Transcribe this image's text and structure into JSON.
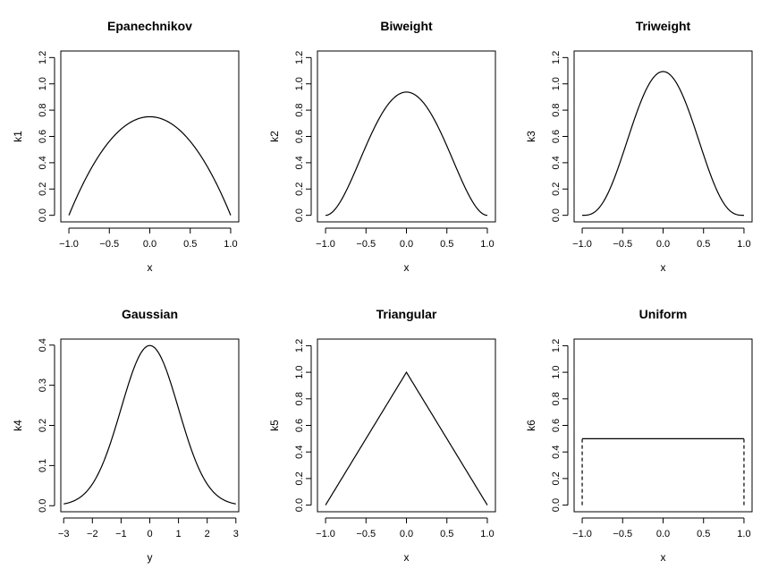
{
  "chart_data": [
    {
      "type": "line",
      "kernel": "epanechnikov",
      "title": "Epanechnikov",
      "xlabel": "x",
      "ylabel": "k1",
      "xlim": [
        -1.1,
        1.1
      ],
      "ylim": [
        -0.05,
        1.25
      ],
      "xticks": [
        -1.0,
        -0.5,
        0.0,
        0.5,
        1.0
      ],
      "xtick_labels": [
        "−1.0",
        "−0.5",
        "0.0",
        "0.5",
        "1.0"
      ],
      "yticks": [
        0.0,
        0.2,
        0.4,
        0.6,
        0.8,
        1.0,
        1.2
      ],
      "ytick_labels": [
        "0.0",
        "0.2",
        "0.4",
        "0.6",
        "0.8",
        "1.0",
        "1.2"
      ],
      "x_range": [
        -1.0,
        1.0
      ],
      "peak": 0.75,
      "grid": false,
      "legend": "none"
    },
    {
      "type": "line",
      "kernel": "biweight",
      "title": "Biweight",
      "xlabel": "x",
      "ylabel": "k2",
      "xlim": [
        -1.1,
        1.1
      ],
      "ylim": [
        -0.05,
        1.25
      ],
      "xticks": [
        -1.0,
        -0.5,
        0.0,
        0.5,
        1.0
      ],
      "xtick_labels": [
        "−1.0",
        "−0.5",
        "0.0",
        "0.5",
        "1.0"
      ],
      "yticks": [
        0.0,
        0.2,
        0.4,
        0.6,
        0.8,
        1.0,
        1.2
      ],
      "ytick_labels": [
        "0.0",
        "0.2",
        "0.4",
        "0.6",
        "0.8",
        "1.0",
        "1.2"
      ],
      "x_range": [
        -1.0,
        1.0
      ],
      "peak": 0.9375,
      "grid": false,
      "legend": "none"
    },
    {
      "type": "line",
      "kernel": "triweight",
      "title": "Triweight",
      "xlabel": "x",
      "ylabel": "k3",
      "xlim": [
        -1.1,
        1.1
      ],
      "ylim": [
        -0.05,
        1.25
      ],
      "xticks": [
        -1.0,
        -0.5,
        0.0,
        0.5,
        1.0
      ],
      "xtick_labels": [
        "−1.0",
        "−0.5",
        "0.0",
        "0.5",
        "1.0"
      ],
      "yticks": [
        0.0,
        0.2,
        0.4,
        0.6,
        0.8,
        1.0,
        1.2
      ],
      "ytick_labels": [
        "0.0",
        "0.2",
        "0.4",
        "0.6",
        "0.8",
        "1.0",
        "1.2"
      ],
      "x_range": [
        -1.0,
        1.0
      ],
      "peak": 1.09375,
      "grid": false,
      "legend": "none"
    },
    {
      "type": "line",
      "kernel": "gaussian",
      "title": "Gaussian",
      "xlabel": "y",
      "ylabel": "k4",
      "xlim": [
        -3.1,
        3.1
      ],
      "ylim": [
        -0.015,
        0.415
      ],
      "xticks": [
        -3,
        -2,
        -1,
        0,
        1,
        2,
        3
      ],
      "xtick_labels": [
        "−3",
        "−2",
        "−1",
        "0",
        "1",
        "2",
        "3"
      ],
      "yticks": [
        0.0,
        0.1,
        0.2,
        0.3,
        0.4
      ],
      "ytick_labels": [
        "0.0",
        "0.1",
        "0.2",
        "0.3",
        "0.4"
      ],
      "x_range": [
        -3.0,
        3.0
      ],
      "peak": 0.3989,
      "grid": false,
      "legend": "none"
    },
    {
      "type": "line",
      "kernel": "triangular",
      "title": "Triangular",
      "xlabel": "x",
      "ylabel": "k5",
      "xlim": [
        -1.1,
        1.1
      ],
      "ylim": [
        -0.05,
        1.25
      ],
      "xticks": [
        -1.0,
        -0.5,
        0.0,
        0.5,
        1.0
      ],
      "xtick_labels": [
        "−1.0",
        "−0.5",
        "0.0",
        "0.5",
        "1.0"
      ],
      "yticks": [
        0.0,
        0.2,
        0.4,
        0.6,
        0.8,
        1.0,
        1.2
      ],
      "ytick_labels": [
        "0.0",
        "0.2",
        "0.4",
        "0.6",
        "0.8",
        "1.0",
        "1.2"
      ],
      "x_range": [
        -1.0,
        1.0
      ],
      "peak": 1.0,
      "grid": false,
      "legend": "none"
    },
    {
      "type": "line",
      "kernel": "uniform",
      "title": "Uniform",
      "xlabel": "x",
      "ylabel": "k6",
      "xlim": [
        -1.1,
        1.1
      ],
      "ylim": [
        -0.05,
        1.25
      ],
      "xticks": [
        -1.0,
        -0.5,
        0.0,
        0.5,
        1.0
      ],
      "xtick_labels": [
        "−1.0",
        "−0.5",
        "0.0",
        "0.5",
        "1.0"
      ],
      "yticks": [
        0.0,
        0.2,
        0.4,
        0.6,
        0.8,
        1.0,
        1.2
      ],
      "ytick_labels": [
        "0.0",
        "0.2",
        "0.4",
        "0.6",
        "0.8",
        "1.0",
        "1.2"
      ],
      "x_range": [
        -1.0,
        1.0
      ],
      "peak": 0.5,
      "dashed_edges": true,
      "grid": false,
      "legend": "none"
    }
  ]
}
